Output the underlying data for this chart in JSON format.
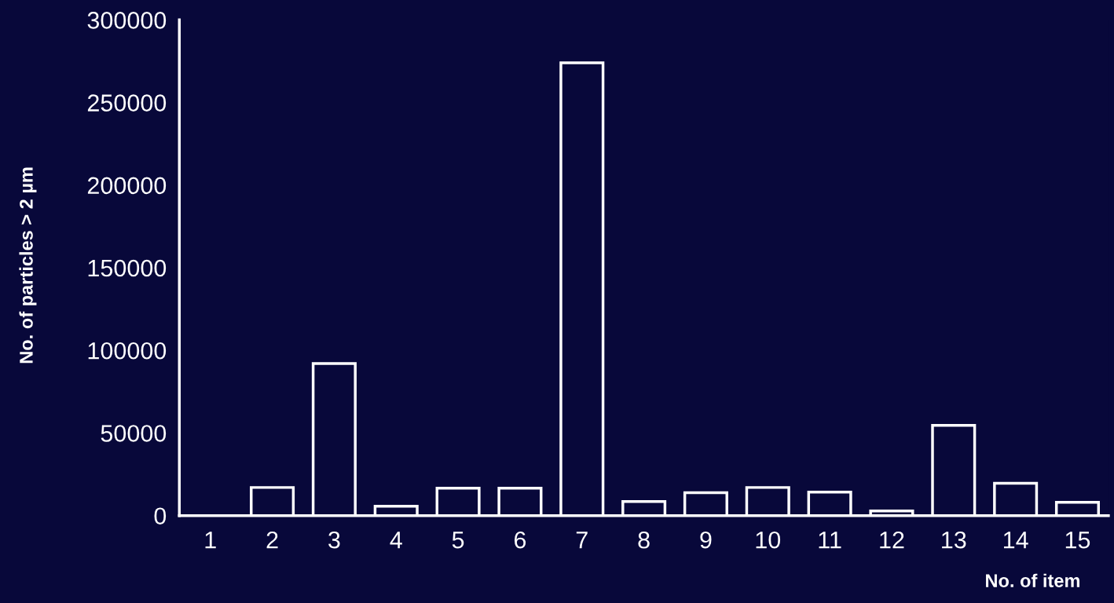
{
  "chart_data": {
    "type": "bar",
    "categories": [
      "1",
      "2",
      "3",
      "4",
      "5",
      "6",
      "7",
      "8",
      "9",
      "10",
      "11",
      "12",
      "13",
      "14",
      "15"
    ],
    "series": [
      {
        "color": "#ffffff",
        "values": [
          0,
          17000,
          92000,
          5700,
          16600,
          16600,
          274000,
          8500,
          13800,
          17000,
          14200,
          2800,
          54600,
          19500,
          8000
        ]
      }
    ],
    "xlabel": "No. of item",
    "ylabel": "No. of particles > 2 µm",
    "ylim": [
      0,
      300000
    ],
    "yticks": [
      0,
      50000,
      100000,
      150000,
      200000,
      250000,
      300000
    ],
    "grid": false,
    "legend": false
  }
}
